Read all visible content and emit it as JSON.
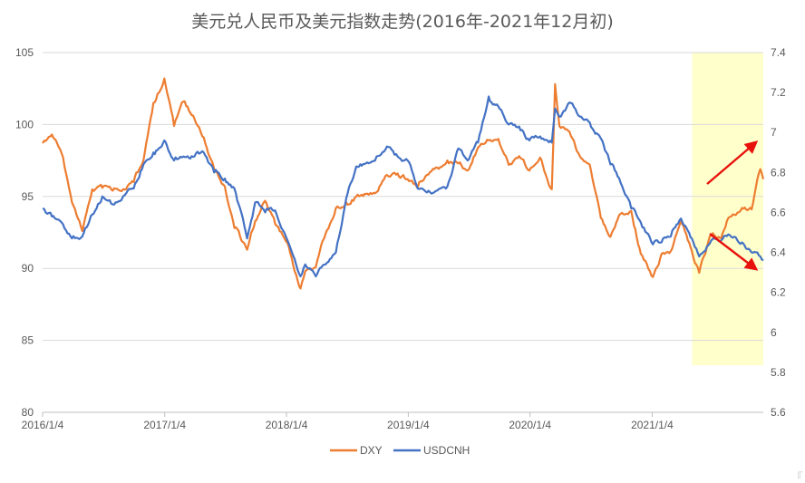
{
  "chart_data": {
    "type": "line",
    "title": "美元兑人民币及美元指数走势(2016年-2021年12月初)",
    "x_tick_labels": [
      "2016/1/4",
      "2017/1/4",
      "2018/1/4",
      "2019/1/4",
      "2020/1/4",
      "2021/1/4"
    ],
    "x_range": [
      "2016-01-04",
      "2021-12-03"
    ],
    "y_left": {
      "ticks": [
        80,
        85,
        90,
        95,
        100,
        105
      ],
      "ylim": [
        80,
        105
      ]
    },
    "y_right": {
      "ticks": [
        "5.6",
        "5.8",
        "6",
        "6.2",
        "6.4",
        "6.6",
        "6.8",
        "7",
        "7.2",
        "7.4"
      ],
      "ylim": [
        5.6,
        7.4
      ]
    },
    "grid": "horizontal",
    "legend_position": "bottom",
    "colors": {
      "DXY": "#ED7D31",
      "USDCNH": "#4472C4",
      "highlight": "#FFFFCC",
      "arrow": "#E8120C"
    },
    "series": [
      {
        "name": "DXY",
        "axis": "left",
        "points": [
          [
            "2016-01-04",
            98.7
          ],
          [
            "2016-02-01",
            99.3
          ],
          [
            "2016-03-01",
            98.0
          ],
          [
            "2016-04-01",
            94.6
          ],
          [
            "2016-05-02",
            92.6
          ],
          [
            "2016-06-01",
            95.5
          ],
          [
            "2016-07-01",
            95.6
          ],
          [
            "2016-08-01",
            95.4
          ],
          [
            "2016-09-01",
            95.5
          ],
          [
            "2016-10-03",
            96.0
          ],
          [
            "2016-11-01",
            97.5
          ],
          [
            "2016-12-01",
            101.5
          ],
          [
            "2017-01-03",
            103.2
          ],
          [
            "2017-02-01",
            99.9
          ],
          [
            "2017-03-01",
            101.6
          ],
          [
            "2017-04-03",
            100.4
          ],
          [
            "2017-05-01",
            99.1
          ],
          [
            "2017-06-01",
            96.9
          ],
          [
            "2017-07-03",
            95.7
          ],
          [
            "2017-08-01",
            92.8
          ],
          [
            "2017-09-08",
            91.3
          ],
          [
            "2017-10-02",
            93.3
          ],
          [
            "2017-11-01",
            94.7
          ],
          [
            "2017-12-01",
            93.1
          ],
          [
            "2018-01-02",
            91.9
          ],
          [
            "2018-02-15",
            88.6
          ],
          [
            "2018-03-01",
            89.8
          ],
          [
            "2018-04-02",
            90.1
          ],
          [
            "2018-05-01",
            92.4
          ],
          [
            "2018-06-01",
            94.2
          ],
          [
            "2018-07-02",
            94.6
          ],
          [
            "2018-08-01",
            95.0
          ],
          [
            "2018-09-03",
            95.2
          ],
          [
            "2018-10-01",
            95.3
          ],
          [
            "2018-11-01",
            96.5
          ],
          [
            "2018-12-03",
            96.6
          ],
          [
            "2019-01-02",
            96.2
          ],
          [
            "2019-02-01",
            95.6
          ],
          [
            "2019-03-01",
            96.5
          ],
          [
            "2019-04-01",
            97.0
          ],
          [
            "2019-05-01",
            97.5
          ],
          [
            "2019-06-03",
            97.3
          ],
          [
            "2019-07-01",
            96.8
          ],
          [
            "2019-08-01",
            98.4
          ],
          [
            "2019-09-02",
            98.9
          ],
          [
            "2019-10-01",
            99.0
          ],
          [
            "2019-11-01",
            97.2
          ],
          [
            "2019-12-02",
            97.8
          ],
          [
            "2020-01-02",
            96.8
          ],
          [
            "2020-02-03",
            97.7
          ],
          [
            "2020-03-09",
            95.5
          ],
          [
            "2020-03-19",
            102.8
          ],
          [
            "2020-04-01",
            99.9
          ],
          [
            "2020-05-01",
            99.5
          ],
          [
            "2020-06-01",
            97.8
          ],
          [
            "2020-07-01",
            97.2
          ],
          [
            "2020-08-03",
            93.5
          ],
          [
            "2020-09-01",
            92.2
          ],
          [
            "2020-10-01",
            93.8
          ],
          [
            "2020-11-02",
            94.0
          ],
          [
            "2020-12-01",
            91.0
          ],
          [
            "2021-01-06",
            89.4
          ],
          [
            "2021-02-01",
            91.0
          ],
          [
            "2021-03-01",
            91.2
          ],
          [
            "2021-03-31",
            93.3
          ],
          [
            "2021-05-03",
            91.2
          ],
          [
            "2021-05-25",
            89.7
          ],
          [
            "2021-06-30",
            92.3
          ],
          [
            "2021-07-30",
            92.1
          ],
          [
            "2021-08-20",
            93.5
          ],
          [
            "2021-09-30",
            94.2
          ],
          [
            "2021-10-29",
            94.1
          ],
          [
            "2021-11-24",
            96.9
          ],
          [
            "2021-12-03",
            96.2
          ]
        ]
      },
      {
        "name": "USDCNH",
        "axis": "right",
        "points": [
          [
            "2016-01-04",
            6.62
          ],
          [
            "2016-02-01",
            6.58
          ],
          [
            "2016-03-01",
            6.55
          ],
          [
            "2016-04-01",
            6.47
          ],
          [
            "2016-05-02",
            6.48
          ],
          [
            "2016-06-01",
            6.59
          ],
          [
            "2016-07-01",
            6.68
          ],
          [
            "2016-08-01",
            6.64
          ],
          [
            "2016-09-01",
            6.68
          ],
          [
            "2016-10-03",
            6.72
          ],
          [
            "2016-11-01",
            6.84
          ],
          [
            "2016-12-01",
            6.9
          ],
          [
            "2017-01-03",
            6.96
          ],
          [
            "2017-02-01",
            6.86
          ],
          [
            "2017-03-01",
            6.88
          ],
          [
            "2017-04-03",
            6.88
          ],
          [
            "2017-05-01",
            6.9
          ],
          [
            "2017-06-01",
            6.8
          ],
          [
            "2017-07-03",
            6.77
          ],
          [
            "2017-08-01",
            6.72
          ],
          [
            "2017-09-08",
            6.47
          ],
          [
            "2017-10-02",
            6.65
          ],
          [
            "2017-11-01",
            6.6
          ],
          [
            "2017-12-01",
            6.61
          ],
          [
            "2018-01-02",
            6.48
          ],
          [
            "2018-02-15",
            6.28
          ],
          [
            "2018-03-01",
            6.34
          ],
          [
            "2018-04-02",
            6.28
          ],
          [
            "2018-05-01",
            6.34
          ],
          [
            "2018-06-01",
            6.4
          ],
          [
            "2018-07-02",
            6.67
          ],
          [
            "2018-08-01",
            6.83
          ],
          [
            "2018-09-03",
            6.85
          ],
          [
            "2018-10-01",
            6.88
          ],
          [
            "2018-11-01",
            6.93
          ],
          [
            "2018-12-03",
            6.88
          ],
          [
            "2019-01-02",
            6.86
          ],
          [
            "2019-02-01",
            6.72
          ],
          [
            "2019-03-01",
            6.7
          ],
          [
            "2019-04-01",
            6.71
          ],
          [
            "2019-05-01",
            6.73
          ],
          [
            "2019-06-03",
            6.92
          ],
          [
            "2019-07-01",
            6.86
          ],
          [
            "2019-08-01",
            6.95
          ],
          [
            "2019-09-02",
            7.18
          ],
          [
            "2019-10-01",
            7.13
          ],
          [
            "2019-11-01",
            7.04
          ],
          [
            "2019-12-02",
            7.03
          ],
          [
            "2020-01-02",
            6.96
          ],
          [
            "2020-02-03",
            6.98
          ],
          [
            "2020-03-09",
            6.95
          ],
          [
            "2020-03-19",
            7.12
          ],
          [
            "2020-04-01",
            7.08
          ],
          [
            "2020-05-01",
            7.15
          ],
          [
            "2020-06-01",
            7.08
          ],
          [
            "2020-07-01",
            7.05
          ],
          [
            "2020-08-03",
            6.97
          ],
          [
            "2020-09-01",
            6.84
          ],
          [
            "2020-10-01",
            6.75
          ],
          [
            "2020-11-02",
            6.62
          ],
          [
            "2020-12-01",
            6.55
          ],
          [
            "2021-01-06",
            6.44
          ],
          [
            "2021-02-01",
            6.45
          ],
          [
            "2021-03-01",
            6.48
          ],
          [
            "2021-03-31",
            6.57
          ],
          [
            "2021-05-03",
            6.47
          ],
          [
            "2021-05-25",
            6.38
          ],
          [
            "2021-06-30",
            6.46
          ],
          [
            "2021-07-30",
            6.46
          ],
          [
            "2021-08-20",
            6.49
          ],
          [
            "2021-09-30",
            6.45
          ],
          [
            "2021-10-29",
            6.4
          ],
          [
            "2021-11-24",
            6.38
          ],
          [
            "2021-12-03",
            6.36
          ]
        ]
      }
    ],
    "annotations": [
      {
        "type": "shaded-band",
        "x_from": "2021-05-20",
        "x_to": "2021-12-03",
        "color": "#FFFFCC"
      },
      {
        "type": "arrow",
        "series": "DXY",
        "direction": "up"
      },
      {
        "type": "arrow",
        "series": "USDCNH",
        "direction": "down"
      }
    ]
  },
  "corner_mark": "ℾ"
}
